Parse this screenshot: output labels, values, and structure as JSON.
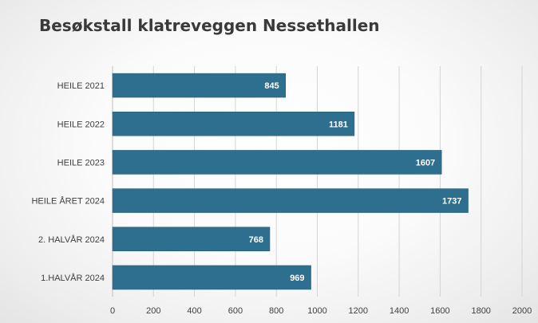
{
  "chart_data": {
    "type": "bar",
    "orientation": "horizontal",
    "title": "Besøkstall klatreveggen Nessethallen",
    "xlabel": "",
    "ylabel": "",
    "categories": [
      "HEILE 2021",
      "HEILE 2022",
      "HEILE 2023",
      "HEILE ÅRET 2024",
      "2. HALVÅR 2024",
      "1.HALVÅR 2024"
    ],
    "values": [
      845,
      1181,
      1607,
      1737,
      768,
      969
    ],
    "xlim": [
      0,
      2000
    ],
    "xticks": [
      0,
      200,
      400,
      600,
      800,
      1000,
      1200,
      1400,
      1600,
      1800,
      2000
    ],
    "grid": "vertical",
    "data_labels": "inside-end",
    "colors": {
      "bar": "#2e6e8e",
      "label": "#ffffff",
      "title": "#3a3a3a"
    }
  }
}
